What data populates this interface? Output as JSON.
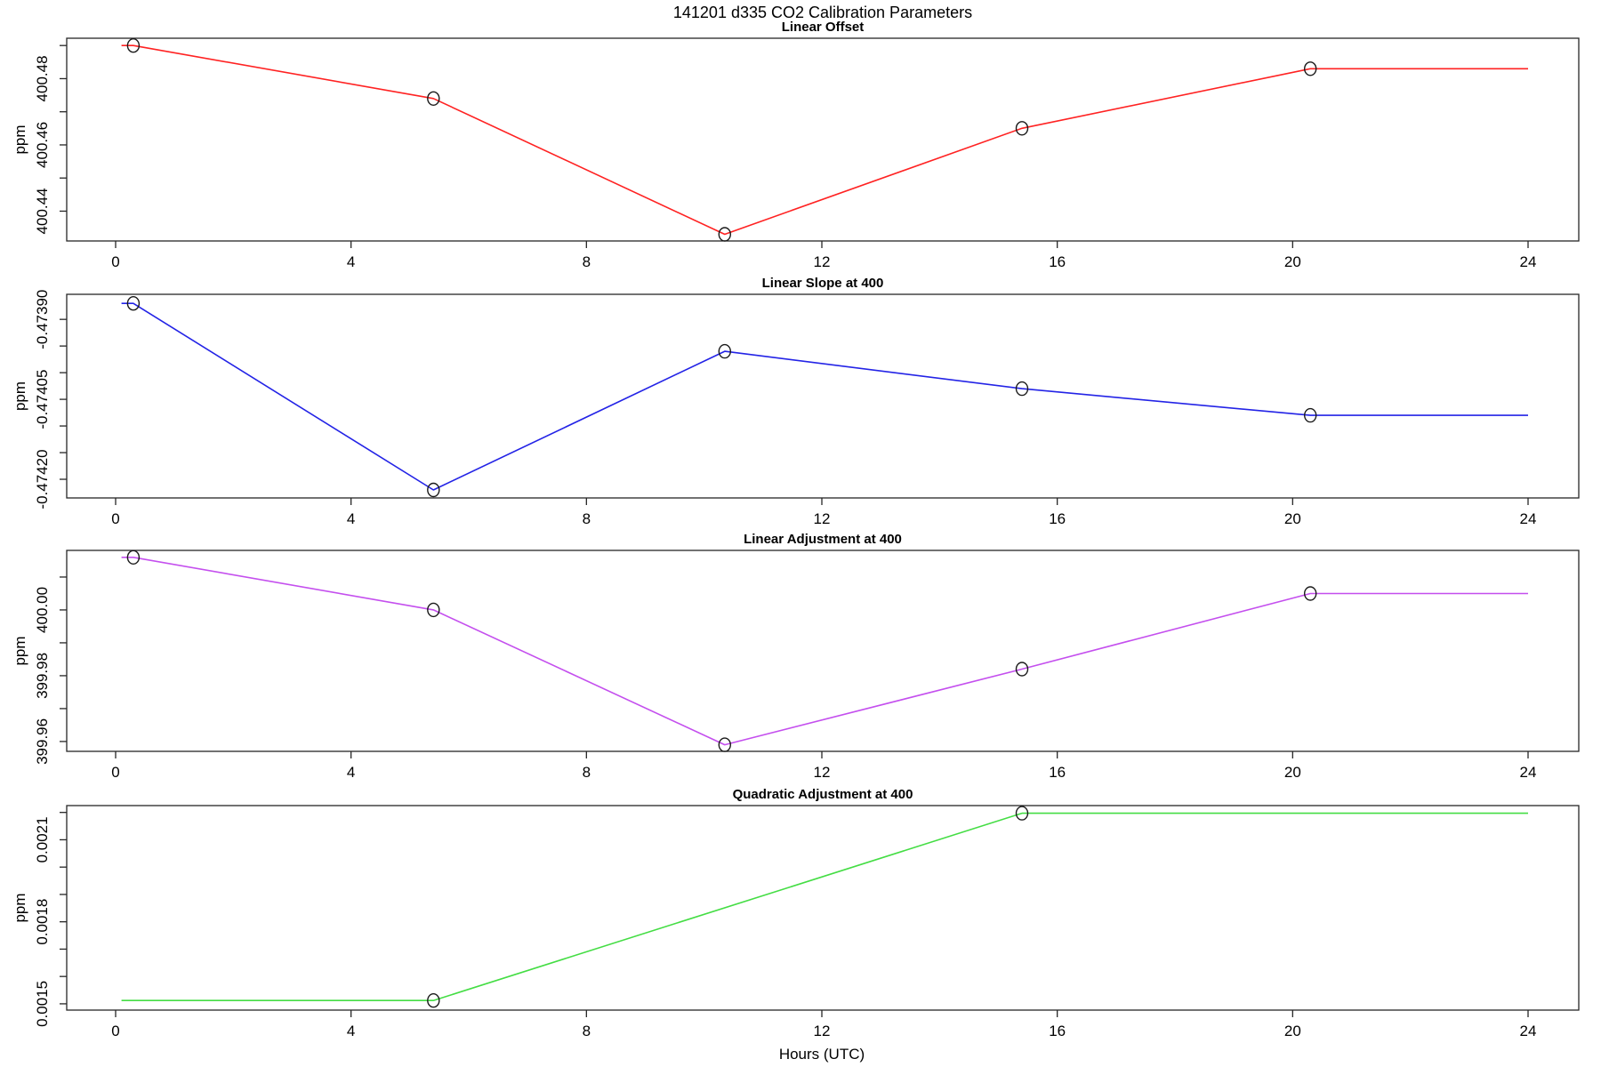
{
  "page": {
    "background": "#ffffff",
    "text_color": "#000000"
  },
  "chart_data": {
    "type": "line",
    "title": "141201   d335   CO2 Calibration Parameters",
    "xlabel": "Hours (UTC)",
    "shared_ylabel": "ppm",
    "x_axis": {
      "ticks": [
        0,
        4,
        8,
        12,
        16,
        20,
        24
      ],
      "unit": "hours UTC"
    },
    "calibration_hours": [
      0.3,
      5.4,
      10.35,
      15.4,
      20.3
    ],
    "panels": [
      {
        "title": "Linear Offset",
        "ylabel": "ppm",
        "color": "#ff2222",
        "marker_color": "#1a1a1a",
        "markers": [
          [
            0.3,
            400.49
          ],
          [
            5.4,
            400.474
          ],
          [
            10.35,
            400.433
          ],
          [
            15.4,
            400.465
          ],
          [
            20.3,
            400.483
          ]
        ],
        "line": [
          [
            0.1,
            400.49
          ],
          [
            0.3,
            400.49
          ],
          [
            5.4,
            400.474
          ],
          [
            10.35,
            400.433
          ],
          [
            15.4,
            400.465
          ],
          [
            20.3,
            400.483
          ],
          [
            24,
            400.483
          ]
        ],
        "ylim": [
          400.431,
          400.4922
        ],
        "yticks": [
          [
            400.44,
            "400.44"
          ],
          [
            400.45,
            ""
          ],
          [
            400.46,
            "400.46"
          ],
          [
            400.47,
            ""
          ],
          [
            400.48,
            "400.48"
          ],
          [
            400.49,
            ""
          ]
        ]
      },
      {
        "title": "Linear Slope at 400",
        "ylabel": "ppm",
        "color": "#2323e6",
        "marker_color": "#1a1a1a",
        "markers": [
          [
            0.3,
            -0.47387
          ],
          [
            5.4,
            -0.47422
          ],
          [
            10.35,
            -0.47396
          ],
          [
            15.4,
            -0.47403
          ],
          [
            20.3,
            -0.47408
          ]
        ],
        "line": [
          [
            0.1,
            -0.47387
          ],
          [
            0.3,
            -0.47387
          ],
          [
            5.4,
            -0.47422
          ],
          [
            10.35,
            -0.47396
          ],
          [
            15.4,
            -0.47403
          ],
          [
            20.3,
            -0.47408
          ],
          [
            24,
            -0.47408
          ]
        ],
        "ylim": [
          -0.474235,
          -0.473853
        ],
        "yticks": [
          [
            -0.4742,
            "-0.47420"
          ],
          [
            -0.47415,
            ""
          ],
          [
            -0.4741,
            ""
          ],
          [
            -0.47405,
            "-0.47405"
          ],
          [
            -0.474,
            ""
          ],
          [
            -0.47395,
            ""
          ],
          [
            -0.4739,
            "-0.47390"
          ]
        ]
      },
      {
        "title": "Linear Adjustment at 400",
        "ylabel": "ppm",
        "color": "#c44fee",
        "marker_color": "#1a1a1a",
        "markers": [
          [
            0.3,
            400.016
          ],
          [
            5.4,
            400.0
          ],
          [
            10.35,
            399.959
          ],
          [
            15.4,
            399.982
          ],
          [
            20.3,
            400.005
          ]
        ],
        "line": [
          [
            0.1,
            400.016
          ],
          [
            0.3,
            400.016
          ],
          [
            5.4,
            400.0
          ],
          [
            10.35,
            399.959
          ],
          [
            15.4,
            399.982
          ],
          [
            20.3,
            400.005
          ],
          [
            24,
            400.005
          ]
        ],
        "ylim": [
          399.957,
          400.0181
        ],
        "yticks": [
          [
            399.96,
            "399.96"
          ],
          [
            399.97,
            ""
          ],
          [
            399.98,
            "399.98"
          ],
          [
            399.99,
            ""
          ],
          [
            400.0,
            "400.00"
          ],
          [
            400.01,
            ""
          ]
        ]
      },
      {
        "title": "Quadratic Adjustment at 400",
        "ylabel": "ppm",
        "color": "#44dd44",
        "marker_color": "#1a1a1a",
        "markers": [
          [
            5.4,
            0.001512
          ],
          [
            15.4,
            0.002197
          ]
        ],
        "line": [
          [
            0.1,
            0.001512
          ],
          [
            5.4,
            0.001512
          ],
          [
            15.4,
            0.002197
          ],
          [
            24,
            0.002197
          ]
        ],
        "ylim": [
          0.001477,
          0.002225
        ],
        "yticks": [
          [
            0.0015,
            "0.0015"
          ],
          [
            0.0016,
            ""
          ],
          [
            0.0017,
            ""
          ],
          [
            0.0018,
            "0.0018"
          ],
          [
            0.0019,
            ""
          ],
          [
            0.002,
            ""
          ],
          [
            0.0021,
            "0.0021"
          ],
          [
            0.0022,
            ""
          ]
        ]
      }
    ]
  }
}
